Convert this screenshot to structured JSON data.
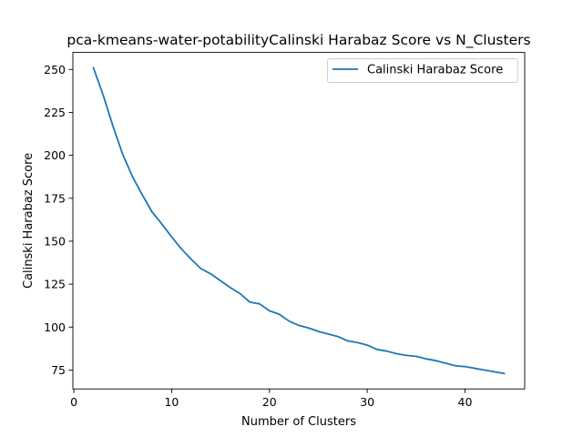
{
  "chart_data": {
    "type": "line",
    "title": "pca-kmeans-water-potabilityCalinski Harabaz Score vs N_Clusters",
    "xlabel": "Number of Clusters",
    "ylabel": "Calinski Harabaz Score",
    "xlim": [
      -0.1,
      46.1
    ],
    "ylim": [
      64.0,
      259.9
    ],
    "xticks": [
      0,
      10,
      20,
      30,
      40
    ],
    "yticks": [
      75,
      100,
      125,
      150,
      175,
      200,
      225,
      250
    ],
    "xtick_labels": [
      "0",
      "10",
      "20",
      "30",
      "40"
    ],
    "ytick_labels": [
      "75",
      "100",
      "125",
      "150",
      "175",
      "200",
      "225",
      "250"
    ],
    "grid": false,
    "legend_position": "top-right",
    "series": [
      {
        "name": "Calinski Harabaz Score",
        "color": "#1f77b4",
        "x": [
          2,
          3,
          4,
          5,
          6,
          7,
          8,
          9,
          10,
          11,
          12,
          13,
          14,
          15,
          16,
          17,
          18,
          19,
          20,
          21,
          22,
          23,
          24,
          25,
          26,
          27,
          28,
          29,
          30,
          31,
          32,
          33,
          34,
          35,
          36,
          37,
          38,
          39,
          40,
          41,
          42,
          43,
          44
        ],
        "y": [
          251.0,
          235.0,
          217.0,
          200.5,
          187.5,
          177.0,
          167.0,
          160.0,
          152.5,
          145.5,
          139.5,
          134.0,
          131.0,
          127.0,
          123.0,
          119.5,
          114.5,
          113.5,
          109.5,
          107.5,
          103.5,
          101.0,
          99.5,
          97.5,
          96.0,
          94.5,
          92.0,
          91.0,
          89.5,
          87.0,
          86.0,
          84.5,
          83.5,
          83.0,
          81.5,
          80.5,
          79.0,
          77.5,
          77.0,
          76.0,
          75.0,
          74.0,
          73.0
        ]
      }
    ]
  }
}
